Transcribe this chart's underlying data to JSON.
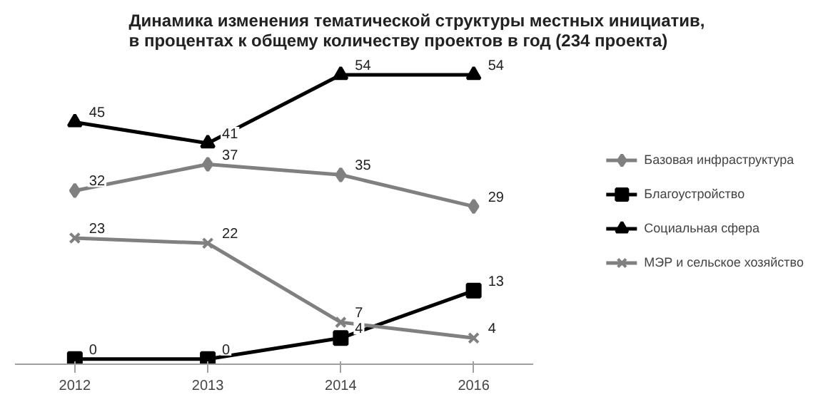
{
  "chart_data": {
    "type": "line",
    "title": "Динамика изменения тематической структуры местных инициатив,\nв процентах к общему количеству проектов в год (234 проекта)",
    "categories": [
      "2012",
      "2013",
      "2014",
      "2016"
    ],
    "series": [
      {
        "name": "Базовая инфраструктура",
        "color": "#808080",
        "marker": "diamond",
        "values": [
          32,
          37,
          35,
          29
        ]
      },
      {
        "name": "Благоустройство",
        "color": "#000000",
        "marker": "square",
        "values": [
          0,
          0,
          4,
          13
        ]
      },
      {
        "name": "Социальная сфера",
        "color": "#000000",
        "marker": "triangle",
        "values": [
          45,
          41,
          54,
          54
        ]
      },
      {
        "name": "МЭР и сельское хозяйство",
        "color": "#808080",
        "marker": "cross",
        "values": [
          23,
          22,
          7,
          4
        ]
      }
    ],
    "data_labels": true,
    "legend": "right",
    "grid": false,
    "tick_labels": "x"
  }
}
